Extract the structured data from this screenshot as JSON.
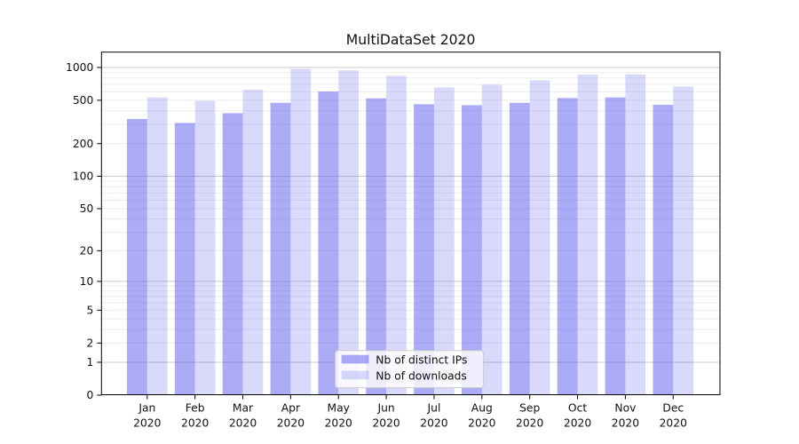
{
  "chart_data": {
    "type": "bar",
    "title": "MultiDataSet 2020",
    "categories": [
      "Jan",
      "Feb",
      "Mar",
      "Apr",
      "May",
      "Jun",
      "Jul",
      "Aug",
      "Sep",
      "Oct",
      "Nov",
      "Dec"
    ],
    "year_label": "2020",
    "series": [
      {
        "name": "Nb of distinct IPs",
        "color": "#6666ee",
        "fill_opacity": 0.55,
        "values": [
          337,
          310,
          381,
          474,
          602,
          521,
          460,
          451,
          474,
          524,
          531,
          455
        ]
      },
      {
        "name": "Nb of downloads",
        "color": "#6666ee",
        "fill_opacity": 0.25,
        "values": [
          531,
          495,
          625,
          970,
          940,
          838,
          657,
          695,
          763,
          860,
          865,
          669
        ]
      }
    ],
    "y_axis": {
      "scale": "symlog",
      "transform": "log10(1+value)",
      "tick_values": [
        0,
        1,
        2,
        5,
        10,
        20,
        50,
        100,
        200,
        500,
        1000
      ],
      "major_grid_values": [
        1,
        10,
        100,
        1000
      ],
      "ylim": [
        0,
        1390
      ]
    },
    "x_axis": {
      "tick_label_line2": "2020"
    },
    "grid": {
      "horizontal": true,
      "minor": true,
      "vertical": false
    },
    "legend": {
      "position": "inside-bottom-center"
    },
    "colors": {
      "background": "#ffffff",
      "axis": "#000000",
      "major_grid": "#c9c9c9",
      "minor_grid": "#ececec",
      "text": "#111111",
      "legend_bg": "#ffffff",
      "legend_border": "#cccccc"
    }
  }
}
